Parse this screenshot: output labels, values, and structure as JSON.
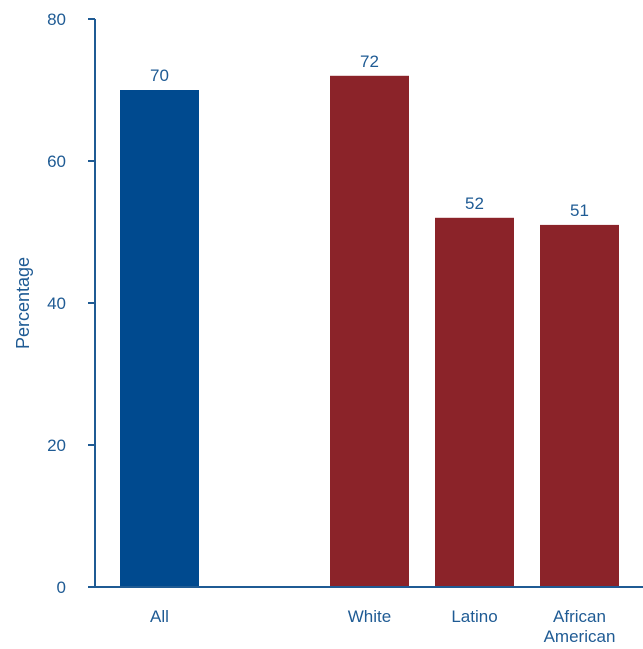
{
  "chart_data": {
    "type": "bar",
    "categories": [
      "All",
      "White",
      "Latino",
      "African American"
    ],
    "category_label_lines": [
      [
        "All"
      ],
      [
        "White"
      ],
      [
        "Latino"
      ],
      [
        "African",
        "American"
      ]
    ],
    "values": [
      70,
      72,
      52,
      51
    ],
    "bar_colors": [
      "#004a8f",
      "#8b2329",
      "#8b2329",
      "#8b2329"
    ],
    "data_labels": [
      "70",
      "72",
      "52",
      "51"
    ],
    "title": "",
    "xlabel": "",
    "ylabel": "Percentage",
    "ylim": [
      0,
      80
    ],
    "yticks": [
      0,
      20,
      40,
      60,
      80
    ],
    "ytick_labels": [
      "0",
      "20",
      "40",
      "60",
      "80"
    ],
    "grid": false,
    "axis_color": "#1f5b94",
    "text_color": "#1f5b94"
  }
}
